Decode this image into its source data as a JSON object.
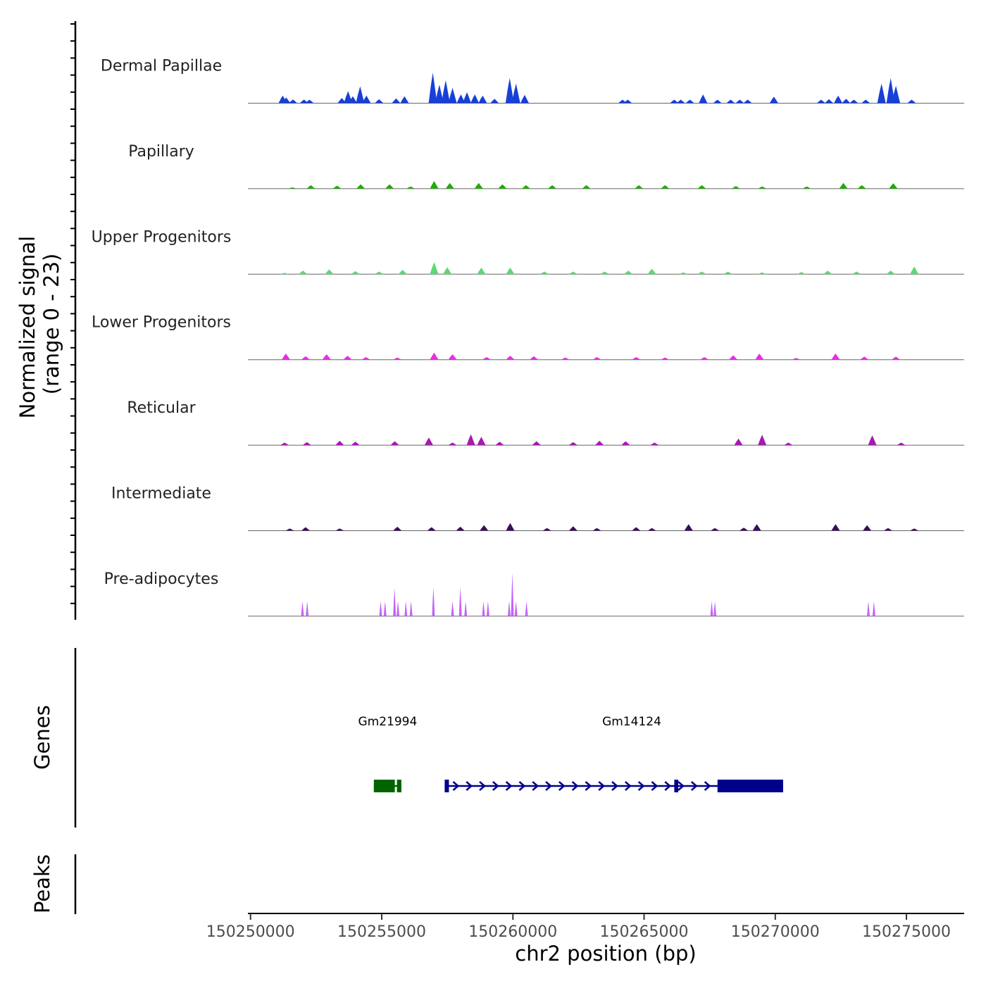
{
  "chart_data": {
    "type": "area",
    "title": "",
    "ylabel": "Normalized signal\n(range 0 - 23)",
    "ylabel_line1": "Normalized signal",
    "ylabel_line2": "(range 0 - 23)",
    "ylim": [
      0,
      23
    ],
    "xlabel": "chr2 position (bp)",
    "xlim": [
      150249900,
      150277200
    ],
    "xticks": [
      150250000,
      150255000,
      150260000,
      150265000,
      150270000,
      150275000
    ],
    "xtick_labels": [
      "150250000",
      "150255000",
      "150260000",
      "150265000",
      "150270000",
      "150275000"
    ],
    "tracks": [
      {
        "name": "Dermal Papillae",
        "color": "#1740D8",
        "peaks": [
          [
            150251230,
            3.5
          ],
          [
            150251360,
            2.6
          ],
          [
            150251620,
            1.7
          ],
          [
            150252040,
            1.7
          ],
          [
            150252250,
            1.6
          ],
          [
            150253480,
            2.4
          ],
          [
            150253720,
            5.5
          ],
          [
            150253900,
            3.2
          ],
          [
            150254180,
            7.7
          ],
          [
            150254420,
            3.5
          ],
          [
            150254900,
            1.8
          ],
          [
            150255550,
            2.2
          ],
          [
            150255870,
            3.2
          ],
          [
            150256950,
            14
          ],
          [
            150257200,
            8.5
          ],
          [
            150257440,
            10.5
          ],
          [
            150257700,
            7
          ],
          [
            150258020,
            4
          ],
          [
            150258250,
            5
          ],
          [
            150258550,
            4
          ],
          [
            150258850,
            3.5
          ],
          [
            150259300,
            2
          ],
          [
            150259880,
            11.5
          ],
          [
            150260120,
            9
          ],
          [
            150260450,
            3.8
          ],
          [
            150264180,
            1.6
          ],
          [
            150264380,
            1.6
          ],
          [
            150266150,
            1.6
          ],
          [
            150266400,
            1.6
          ],
          [
            150266750,
            1.6
          ],
          [
            150267250,
            4
          ],
          [
            150267800,
            1.6
          ],
          [
            150268300,
            1.6
          ],
          [
            150268650,
            1.6
          ],
          [
            150268950,
            1.6
          ],
          [
            150269950,
            3
          ],
          [
            150271750,
            1.6
          ],
          [
            150272050,
            1.8
          ],
          [
            150272400,
            3.5
          ],
          [
            150272700,
            2
          ],
          [
            150273000,
            1.6
          ],
          [
            150273450,
            1.6
          ],
          [
            150274050,
            9
          ],
          [
            150274400,
            11.5
          ],
          [
            150274600,
            8
          ],
          [
            150275200,
            1.6
          ]
        ]
      },
      {
        "name": "Papillary",
        "color": "#22AA08",
        "peaks": [
          [
            150251600,
            0.6
          ],
          [
            150252300,
            1.6
          ],
          [
            150253300,
            1.4
          ],
          [
            150254200,
            2
          ],
          [
            150255300,
            2
          ],
          [
            150256100,
            1
          ],
          [
            150257000,
            3.5
          ],
          [
            150257600,
            2.6
          ],
          [
            150258700,
            2.6
          ],
          [
            150259600,
            2
          ],
          [
            150260500,
            1.6
          ],
          [
            150261500,
            1.6
          ],
          [
            150262800,
            1.6
          ],
          [
            150264800,
            1.6
          ],
          [
            150265800,
            1.6
          ],
          [
            150267200,
            1.6
          ],
          [
            150268500,
            1.2
          ],
          [
            150269500,
            1
          ],
          [
            150271200,
            1
          ],
          [
            150272600,
            2.6
          ],
          [
            150273300,
            1.6
          ],
          [
            150274500,
            2.5
          ]
        ]
      },
      {
        "name": "Upper Progenitors",
        "color": "#5CD975",
        "peaks": [
          [
            150251300,
            0.6
          ],
          [
            150252000,
            1.6
          ],
          [
            150253000,
            2.2
          ],
          [
            150254000,
            1.4
          ],
          [
            150254900,
            1.2
          ],
          [
            150255800,
            2
          ],
          [
            150257000,
            5.5
          ],
          [
            150257500,
            3.2
          ],
          [
            150258800,
            3
          ],
          [
            150259900,
            3
          ],
          [
            150261200,
            1.2
          ],
          [
            150262300,
            1.2
          ],
          [
            150263500,
            1.2
          ],
          [
            150264400,
            1.6
          ],
          [
            150265300,
            2.5
          ],
          [
            150266500,
            0.8
          ],
          [
            150267200,
            1.2
          ],
          [
            150268200,
            1.2
          ],
          [
            150269500,
            0.8
          ],
          [
            150271000,
            1
          ],
          [
            150272000,
            1.6
          ],
          [
            150273100,
            1.2
          ],
          [
            150274400,
            1.6
          ],
          [
            150275300,
            3.5
          ]
        ]
      },
      {
        "name": "Lower Progenitors",
        "color": "#E62EE6",
        "peaks": [
          [
            150251350,
            2.8
          ],
          [
            150252100,
            1.6
          ],
          [
            150252900,
            2.5
          ],
          [
            150253700,
            1.8
          ],
          [
            150254400,
            1.2
          ],
          [
            150255600,
            1
          ],
          [
            150257000,
            3.2
          ],
          [
            150257700,
            2.5
          ],
          [
            150259000,
            1.2
          ],
          [
            150259900,
            1.8
          ],
          [
            150260800,
            1.6
          ],
          [
            150262000,
            1
          ],
          [
            150263200,
            1.2
          ],
          [
            150264700,
            1.2
          ],
          [
            150265800,
            1
          ],
          [
            150267300,
            1.2
          ],
          [
            150268400,
            2
          ],
          [
            150269400,
            2.8
          ],
          [
            150270800,
            0.8
          ],
          [
            150272300,
            2.8
          ],
          [
            150273400,
            1.4
          ],
          [
            150274600,
            1.4
          ]
        ]
      },
      {
        "name": "Reticular",
        "color": "#A21CAF",
        "peaks": [
          [
            150251300,
            1.2
          ],
          [
            150252150,
            1.4
          ],
          [
            150253400,
            2
          ],
          [
            150254000,
            1.6
          ],
          [
            150255500,
            1.8
          ],
          [
            150256800,
            3.5
          ],
          [
            150257700,
            1.2
          ],
          [
            150258400,
            5
          ],
          [
            150258800,
            3.8
          ],
          [
            150259500,
            1.6
          ],
          [
            150260900,
            1.8
          ],
          [
            150262300,
            1.4
          ],
          [
            150263300,
            2
          ],
          [
            150264300,
            1.8
          ],
          [
            150265400,
            1.2
          ],
          [
            150268600,
            3
          ],
          [
            150269500,
            4.8
          ],
          [
            150270500,
            1.2
          ],
          [
            150273700,
            4.5
          ],
          [
            150274800,
            1.2
          ]
        ]
      },
      {
        "name": "Intermediate",
        "color": "#3A0D5C",
        "peaks": [
          [
            150251500,
            1
          ],
          [
            150252100,
            1.6
          ],
          [
            150253400,
            1
          ],
          [
            150255600,
            1.8
          ],
          [
            150256900,
            1.6
          ],
          [
            150258000,
            1.8
          ],
          [
            150258900,
            2.5
          ],
          [
            150259900,
            3.5
          ],
          [
            150261300,
            1.2
          ],
          [
            150262300,
            2
          ],
          [
            150263200,
            1.2
          ],
          [
            150264700,
            1.6
          ],
          [
            150265300,
            1.2
          ],
          [
            150266700,
            3
          ],
          [
            150267700,
            1.2
          ],
          [
            150268800,
            1.4
          ],
          [
            150269300,
            3
          ],
          [
            150272300,
            3
          ],
          [
            150273500,
            2.5
          ],
          [
            150274300,
            1.2
          ],
          [
            150275300,
            1
          ]
        ]
      },
      {
        "name": "Pre-adipocytes",
        "color": "#C362FA",
        "peaks": [
          [
            150251980,
            6.8
          ],
          [
            150252160,
            6.8
          ],
          [
            150254960,
            6.8
          ],
          [
            150255130,
            6.8
          ],
          [
            150255490,
            13
          ],
          [
            150255620,
            6.8
          ],
          [
            150255920,
            6.8
          ],
          [
            150256120,
            6.8
          ],
          [
            150256970,
            13.5
          ],
          [
            150257700,
            6.8
          ],
          [
            150258000,
            13.5
          ],
          [
            150258200,
            6.8
          ],
          [
            150258880,
            6.8
          ],
          [
            150259050,
            6.8
          ],
          [
            150259860,
            6.8
          ],
          [
            150259980,
            20
          ],
          [
            150260120,
            6.8
          ],
          [
            150260520,
            6.8
          ],
          [
            150267580,
            6.8
          ],
          [
            150267700,
            6.8
          ],
          [
            150273550,
            6.8
          ],
          [
            150273760,
            6.8
          ]
        ]
      }
    ],
    "genes": [
      {
        "name": "Gm21994",
        "start": 150254700,
        "end": 150255750,
        "strand": "-",
        "color": "#006400",
        "exons": [
          [
            150254700,
            150255500
          ],
          [
            150255580,
            150255750
          ]
        ]
      },
      {
        "name": "Gm14124",
        "start": 150257400,
        "end": 150270300,
        "strand": "+",
        "color": "#00008B",
        "exons": [
          [
            150257400,
            150257560
          ],
          [
            150266150,
            150266300
          ],
          [
            150267800,
            150270300
          ]
        ]
      }
    ],
    "panel_labels": {
      "genes": "Genes",
      "peaks": "Peaks"
    }
  }
}
